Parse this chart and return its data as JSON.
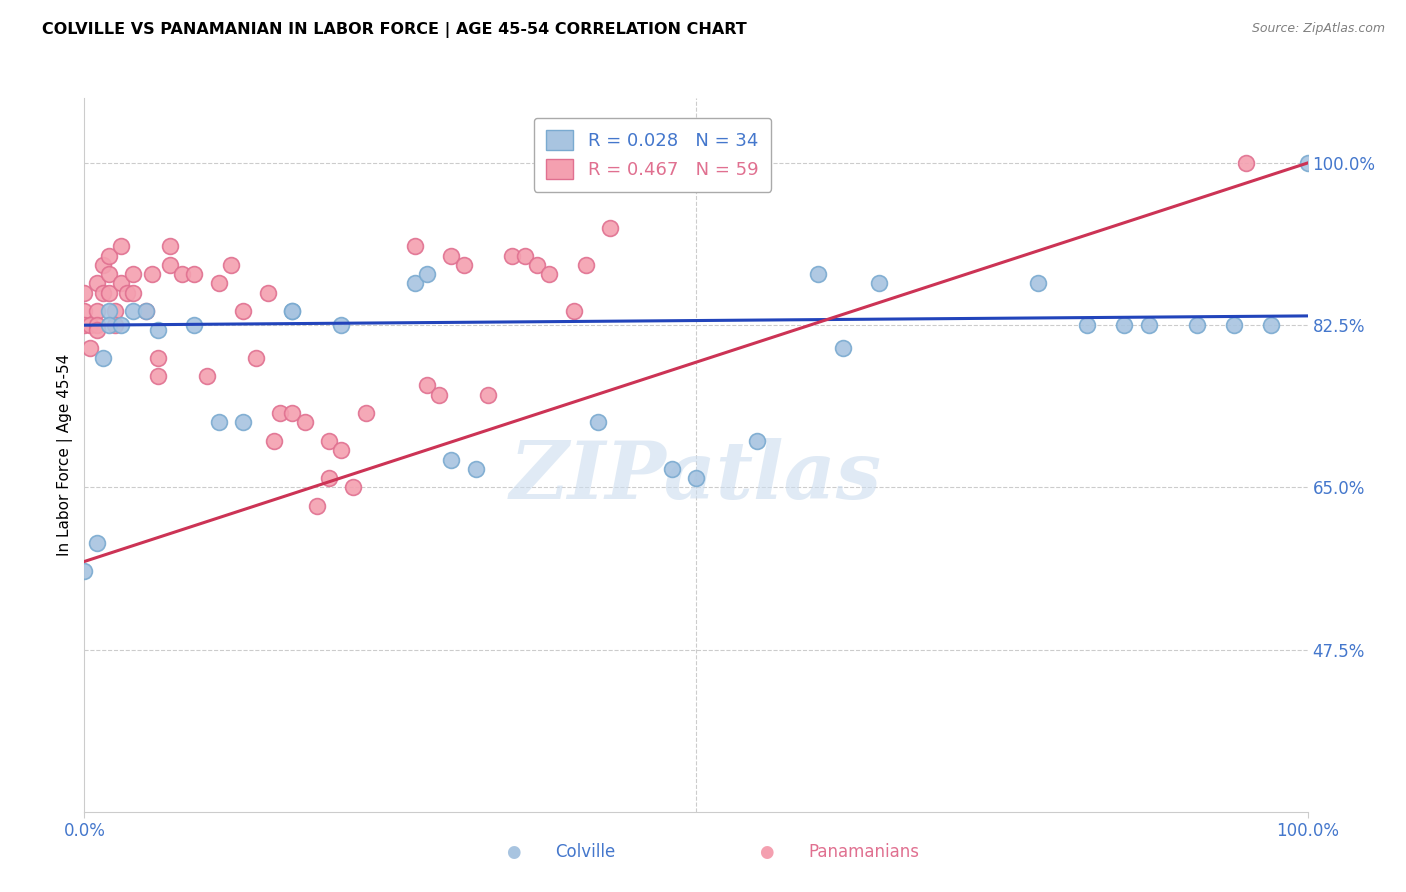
{
  "title": "COLVILLE VS PANAMANIAN IN LABOR FORCE | AGE 45-54 CORRELATION CHART",
  "source": "Source: ZipAtlas.com",
  "ylabel": "In Labor Force | Age 45-54",
  "watermark": "ZIPatlas",
  "legend_blue": {
    "R": 0.028,
    "N": 34
  },
  "legend_pink": {
    "R": 0.467,
    "N": 59
  },
  "colville_color": "#a8c4e0",
  "panamanian_color": "#f4a0b0",
  "colville_edge": "#7aaad0",
  "panamanian_edge": "#e07090",
  "trendline_blue_color": "#2244bb",
  "trendline_pink_color": "#cc3355",
  "axis_label_color": "#4477cc",
  "grid_color": "#cccccc",
  "background_color": "#ffffff",
  "colville_x": [
    0.0,
    0.01,
    0.015,
    0.02,
    0.02,
    0.03,
    0.04,
    0.05,
    0.06,
    0.09,
    0.11,
    0.13,
    0.17,
    0.17,
    0.21,
    0.27,
    0.28,
    0.3,
    0.32,
    0.42,
    0.48,
    0.5,
    0.55,
    0.6,
    0.62,
    0.65,
    0.78,
    0.82,
    0.85,
    0.87,
    0.91,
    0.94,
    0.97,
    1.0
  ],
  "colville_y": [
    0.56,
    0.59,
    0.79,
    0.84,
    0.825,
    0.825,
    0.84,
    0.84,
    0.82,
    0.825,
    0.72,
    0.72,
    0.84,
    0.84,
    0.825,
    0.87,
    0.88,
    0.68,
    0.67,
    0.72,
    0.67,
    0.66,
    0.7,
    0.88,
    0.8,
    0.87,
    0.87,
    0.825,
    0.825,
    0.825,
    0.825,
    0.825,
    0.825,
    1.0
  ],
  "panamanian_x": [
    0.0,
    0.0,
    0.0,
    0.005,
    0.005,
    0.01,
    0.01,
    0.01,
    0.01,
    0.015,
    0.015,
    0.02,
    0.02,
    0.02,
    0.025,
    0.025,
    0.03,
    0.03,
    0.035,
    0.04,
    0.04,
    0.05,
    0.055,
    0.06,
    0.06,
    0.07,
    0.07,
    0.08,
    0.09,
    0.1,
    0.11,
    0.12,
    0.13,
    0.14,
    0.15,
    0.155,
    0.16,
    0.17,
    0.18,
    0.19,
    0.2,
    0.2,
    0.21,
    0.22,
    0.23,
    0.27,
    0.28,
    0.29,
    0.3,
    0.31,
    0.33,
    0.35,
    0.36,
    0.37,
    0.38,
    0.4,
    0.41,
    0.43,
    0.95
  ],
  "panamanian_y": [
    0.84,
    0.86,
    0.825,
    0.825,
    0.8,
    0.87,
    0.84,
    0.825,
    0.82,
    0.89,
    0.86,
    0.9,
    0.88,
    0.86,
    0.84,
    0.825,
    0.91,
    0.87,
    0.86,
    0.86,
    0.88,
    0.84,
    0.88,
    0.77,
    0.79,
    0.89,
    0.91,
    0.88,
    0.88,
    0.77,
    0.87,
    0.89,
    0.84,
    0.79,
    0.86,
    0.7,
    0.73,
    0.73,
    0.72,
    0.63,
    0.7,
    0.66,
    0.69,
    0.65,
    0.73,
    0.91,
    0.76,
    0.75,
    0.9,
    0.89,
    0.75,
    0.9,
    0.9,
    0.89,
    0.88,
    0.84,
    0.89,
    0.93,
    1.0
  ],
  "xlim": [
    0.0,
    1.0
  ],
  "ylim": [
    0.3,
    1.07
  ],
  "right_ytick_values": [
    0.475,
    0.65,
    0.825,
    1.0
  ],
  "right_ytick_labels": [
    "47.5%",
    "65.0%",
    "82.5%",
    "100.0%"
  ],
  "blue_trend_start_y": 0.825,
  "blue_trend_end_y": 0.835,
  "pink_trend_start_y": 0.57,
  "pink_trend_end_y": 1.0
}
